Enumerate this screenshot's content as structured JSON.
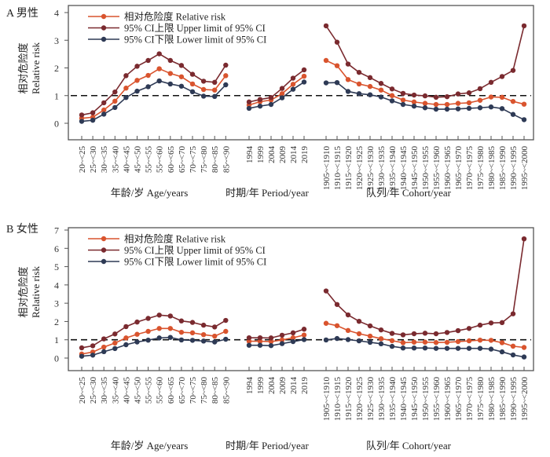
{
  "colors": {
    "relative_risk": "#d9542e",
    "upper": "#7a2a2f",
    "lower": "#2e3a55",
    "reference": "#111111",
    "axis": "#555555"
  },
  "chart_data": [
    {
      "type": "line",
      "panel_label": "A 男性",
      "ylabel_cn": "相对危险度",
      "ylabel_en": "Relative risk",
      "ylim": [
        -0.65,
        4.2
      ],
      "yticks": [
        0,
        1,
        2,
        3,
        4
      ],
      "reference_line": 1,
      "legend": [
        {
          "key": "rr",
          "label": "相对危险度  Relative risk"
        },
        {
          "key": "upper",
          "label": "95% CI上限  Upper limit of 95% CI"
        },
        {
          "key": "lower",
          "label": "95% CI下限  Lower limit of 95% CI"
        }
      ],
      "legend_position": "top-left",
      "groups": [
        {
          "name": "age",
          "xlabel": "年龄/岁  Age/years",
          "categories": [
            "20~<25",
            "25~<30",
            "30~<35",
            "35~<40",
            "40~<45",
            "45~<50",
            "55~<55",
            "55~<60",
            "60~<65",
            "65~<70",
            "70~<75",
            "75~<80",
            "80~<85",
            "85~<90"
          ],
          "series": {
            "rr": [
              0.18,
              0.22,
              0.48,
              0.8,
              1.27,
              1.55,
              1.73,
              1.97,
              1.8,
              1.68,
              1.42,
              1.22,
              1.2,
              1.72
            ],
            "upper": [
              0.3,
              0.38,
              0.74,
              1.13,
              1.72,
              2.06,
              2.27,
              2.51,
              2.27,
              2.09,
              1.77,
              1.52,
              1.48,
              2.1
            ],
            "lower": [
              0.07,
              0.11,
              0.33,
              0.57,
              0.93,
              1.16,
              1.32,
              1.53,
              1.42,
              1.34,
              1.14,
              0.98,
              0.97,
              1.39
            ]
          }
        },
        {
          "name": "period",
          "xlabel": "时期/年  Period/year",
          "categories": [
            "1994",
            "1999",
            "2004",
            "2009",
            "2014",
            "2019"
          ],
          "series": {
            "rr": [
              0.66,
              0.78,
              0.84,
              1.07,
              1.41,
              1.7
            ],
            "upper": [
              0.77,
              0.86,
              0.93,
              1.26,
              1.63,
              1.93
            ],
            "lower": [
              0.54,
              0.62,
              0.68,
              0.92,
              1.23,
              1.49
            ]
          }
        },
        {
          "name": "cohort",
          "xlabel": "队列/年  Cohort/year",
          "categories": [
            "1905~<1910",
            "1910~<1915",
            "1915~<1920",
            "1920~<1925",
            "1925~<1930",
            "1930~<1935",
            "1935~<1940",
            "1940~<1945",
            "1945~<1950",
            "1950~<1955",
            "1955~<1960",
            "1960~<1965",
            "1965~<1970",
            "1970~<1975",
            "1975~<1980",
            "1980~<1985",
            "1985~<1990",
            "1990~<1995",
            "1995~<2000"
          ],
          "series": {
            "rr": [
              2.27,
              2.08,
              1.58,
              1.42,
              1.33,
              1.2,
              1.0,
              0.84,
              0.77,
              0.72,
              0.68,
              0.68,
              0.72,
              0.74,
              0.83,
              0.95,
              0.94,
              0.79,
              0.69
            ],
            "upper": [
              3.52,
              2.93,
              2.14,
              1.84,
              1.65,
              1.44,
              1.24,
              1.08,
              1.02,
              0.99,
              0.94,
              0.96,
              1.06,
              1.1,
              1.25,
              1.48,
              1.69,
              1.91,
              3.52
            ],
            "lower": [
              1.46,
              1.47,
              1.15,
              1.07,
              1.03,
              0.95,
              0.81,
              0.68,
              0.62,
              0.56,
              0.51,
              0.51,
              0.52,
              0.54,
              0.56,
              0.59,
              0.53,
              0.32,
              0.13
            ]
          }
        }
      ]
    },
    {
      "type": "line",
      "panel_label": "B 女性",
      "ylabel_cn": "相对危险度",
      "ylabel_en": "Relative risk",
      "ylim": [
        -0.7,
        7.0
      ],
      "yticks": [
        0,
        1,
        2,
        3,
        4,
        5,
        6,
        7
      ],
      "reference_line": 1,
      "legend": [
        {
          "key": "rr",
          "label": "相对危险度  Relative risk"
        },
        {
          "key": "upper",
          "label": "95% CI上限  Upper limit of 95% CI"
        },
        {
          "key": "lower",
          "label": "95% CI下限  Lower limit of 95% CI"
        }
      ],
      "legend_position": "top-left",
      "groups": [
        {
          "name": "age",
          "xlabel": "年龄/岁  Age/years",
          "categories": [
            "20~<25",
            "25~<30",
            "30~<35",
            "35~<40",
            "40~<45",
            "45~<50",
            "55~<55",
            "55~<60",
            "60~<65",
            "65~<70",
            "70~<75",
            "75~<80",
            "80~<85",
            "85~<90"
          ],
          "series": {
            "rr": [
              0.22,
              0.33,
              0.6,
              0.82,
              1.1,
              1.3,
              1.46,
              1.62,
              1.62,
              1.41,
              1.38,
              1.28,
              1.2,
              1.46
            ],
            "upper": [
              0.56,
              0.67,
              1.05,
              1.32,
              1.72,
              1.97,
              2.17,
              2.35,
              2.3,
              2.03,
              1.95,
              1.8,
              1.7,
              2.06
            ],
            "lower": [
              0.1,
              0.16,
              0.35,
              0.52,
              0.73,
              0.88,
              0.98,
              1.1,
              1.13,
              0.99,
              0.97,
              0.93,
              0.88,
              1.03
            ]
          }
        },
        {
          "name": "period",
          "xlabel": "时期/年  Period/year",
          "categories": [
            "1994",
            "1999",
            "2004",
            "2009",
            "2014",
            "2019"
          ],
          "series": {
            "rr": [
              0.92,
              0.92,
              0.9,
              0.99,
              1.11,
              1.26
            ],
            "upper": [
              1.11,
              1.11,
              1.1,
              1.25,
              1.38,
              1.58
            ],
            "lower": [
              0.7,
              0.7,
              0.68,
              0.79,
              0.9,
              1.01
            ]
          }
        },
        {
          "name": "cohort",
          "xlabel": "队列/年  Cohort/year",
          "categories": [
            "1905~<1910",
            "1910~<1915",
            "1915~<1920",
            "1920~<1925",
            "1925~<1930",
            "1930~<1935",
            "1935~<1940",
            "1940~<1945",
            "1945~<1950",
            "1950~<1955",
            "1955~<1960",
            "1960~<1965",
            "1965~<1970",
            "1970~<1975",
            "1975~<1980",
            "1980~<1985",
            "1985~<1990",
            "1990~<1995",
            "1995~<2000"
          ],
          "series": {
            "rr": [
              1.9,
              1.77,
              1.51,
              1.33,
              1.2,
              1.06,
              0.95,
              0.84,
              0.87,
              0.87,
              0.85,
              0.86,
              0.9,
              0.94,
              0.98,
              0.97,
              0.84,
              0.65,
              0.58
            ],
            "upper": [
              3.67,
              2.93,
              2.36,
              2.01,
              1.76,
              1.54,
              1.35,
              1.27,
              1.33,
              1.36,
              1.33,
              1.4,
              1.5,
              1.62,
              1.8,
              1.92,
              1.94,
              2.42,
              6.52
            ],
            "lower": [
              0.99,
              1.07,
              1.01,
              0.94,
              0.86,
              0.78,
              0.64,
              0.55,
              0.55,
              0.55,
              0.53,
              0.53,
              0.53,
              0.53,
              0.53,
              0.49,
              0.34,
              0.17,
              0.06
            ]
          }
        }
      ]
    }
  ]
}
